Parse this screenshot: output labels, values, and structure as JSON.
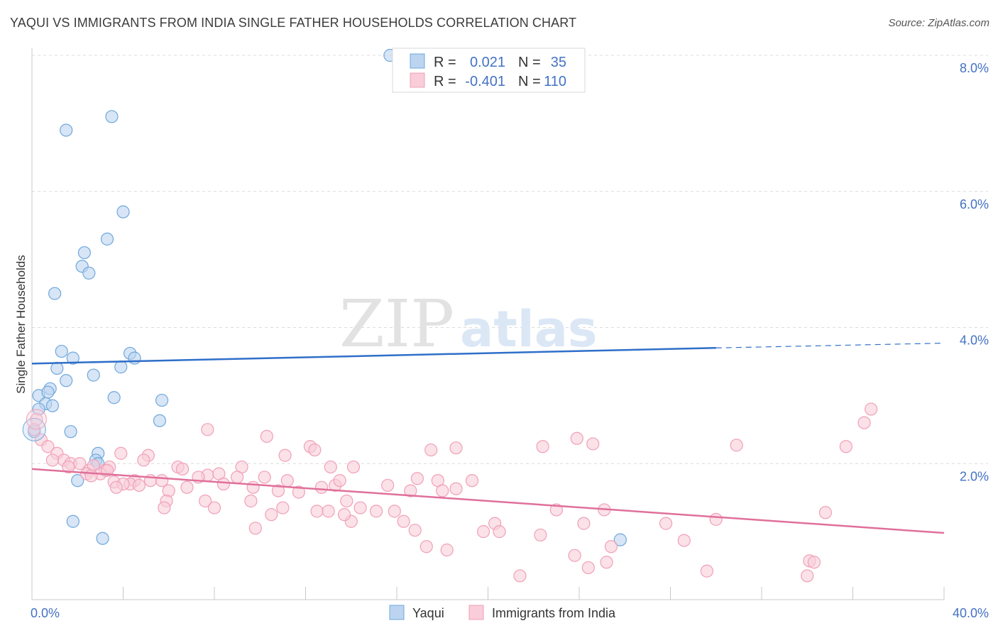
{
  "title": "YAQUI VS IMMIGRANTS FROM INDIA SINGLE FATHER HOUSEHOLDS CORRELATION CHART",
  "source": "Source: ZipAtlas.com",
  "watermark": {
    "zip": "ZIP",
    "atlas": "atlas"
  },
  "chart_data": {
    "type": "scatter",
    "ylabel": "Single Father Households",
    "xlim": [
      0,
      40
    ],
    "ylim": [
      0,
      8
    ],
    "y_ticks": [
      {
        "value": 2,
        "label": "2.0%"
      },
      {
        "value": 4,
        "label": "4.0%"
      },
      {
        "value": 6,
        "label": "6.0%"
      },
      {
        "value": 8,
        "label": "8.0%"
      }
    ],
    "x_tick_labels": [
      {
        "value": 0,
        "label": "0.0%"
      },
      {
        "value": 40,
        "label": "40.0%"
      }
    ],
    "x_minor_ticks": [
      0,
      4,
      8,
      12,
      16,
      20,
      24,
      28,
      32,
      36,
      40
    ],
    "grid": true,
    "legend": {
      "placement": "top-center",
      "rows": [
        {
          "r_label": "R =",
          "r_value": "0.021",
          "n_label": "N =",
          "n_value": "35"
        },
        {
          "r_label": "R =",
          "r_value": "-0.401",
          "n_label": "N =",
          "n_value": "110"
        }
      ]
    },
    "series": [
      {
        "name": "Yaqui",
        "color": "#6fa8dc",
        "fill": "#bcd4f0",
        "trend_color": "#2f6fc9",
        "trend": {
          "x0": 0,
          "y0": 3.47,
          "x1": 30,
          "y1": 3.7,
          "dash_x1": 40,
          "dash_y1": 3.77
        },
        "points": [
          [
            15.7,
            8.0
          ],
          [
            3.5,
            7.1
          ],
          [
            1.5,
            6.9
          ],
          [
            4.0,
            5.7
          ],
          [
            3.3,
            5.3
          ],
          [
            2.3,
            5.1
          ],
          [
            2.2,
            4.9
          ],
          [
            2.5,
            4.8
          ],
          [
            1.0,
            4.5
          ],
          [
            1.3,
            3.65
          ],
          [
            4.3,
            3.62
          ],
          [
            1.8,
            3.55
          ],
          [
            4.5,
            3.55
          ],
          [
            1.1,
            3.4
          ],
          [
            3.9,
            3.42
          ],
          [
            1.5,
            3.22
          ],
          [
            2.7,
            3.3
          ],
          [
            0.8,
            3.1
          ],
          [
            0.3,
            3.0
          ],
          [
            0.7,
            3.05
          ],
          [
            3.6,
            2.97
          ],
          [
            5.7,
            2.93
          ],
          [
            0.6,
            2.88
          ],
          [
            0.9,
            2.85
          ],
          [
            0.3,
            2.8
          ],
          [
            5.6,
            2.63
          ],
          [
            1.7,
            2.47
          ],
          [
            0.1,
            2.47
          ],
          [
            2.9,
            2.15
          ],
          [
            2.8,
            2.05
          ],
          [
            2.9,
            2.0
          ],
          [
            2.0,
            1.75
          ],
          [
            1.8,
            1.15
          ],
          [
            3.1,
            0.9
          ],
          [
            25.8,
            0.88
          ]
        ]
      },
      {
        "name": "Immigrants from India",
        "color": "#f0a0b8",
        "fill": "#f9cdd9",
        "trend_color": "#e0709a",
        "trend": {
          "x0": 0,
          "y0": 1.92,
          "x1": 40,
          "y1": 0.98
        },
        "points": [
          [
            0.2,
            2.65
          ],
          [
            0.1,
            2.5
          ],
          [
            0.4,
            2.35
          ],
          [
            0.7,
            2.25
          ],
          [
            1.1,
            2.15
          ],
          [
            1.4,
            2.05
          ],
          [
            0.9,
            2.05
          ],
          [
            1.7,
            2.0
          ],
          [
            2.1,
            2.0
          ],
          [
            1.6,
            1.95
          ],
          [
            2.5,
            1.9
          ],
          [
            2.7,
            1.97
          ],
          [
            3.2,
            1.9
          ],
          [
            3.4,
            1.95
          ],
          [
            2.4,
            1.85
          ],
          [
            3.0,
            1.85
          ],
          [
            3.3,
            1.9
          ],
          [
            2.6,
            1.82
          ],
          [
            3.9,
            2.15
          ],
          [
            5.1,
            2.12
          ],
          [
            4.9,
            2.05
          ],
          [
            6.4,
            1.95
          ],
          [
            6.6,
            1.92
          ],
          [
            7.7,
            1.83
          ],
          [
            8.2,
            1.85
          ],
          [
            9.2,
            1.95
          ],
          [
            7.3,
            1.8
          ],
          [
            9.0,
            1.8
          ],
          [
            3.6,
            1.73
          ],
          [
            4.5,
            1.75
          ],
          [
            4.3,
            1.7
          ],
          [
            5.2,
            1.75
          ],
          [
            5.7,
            1.75
          ],
          [
            4.0,
            1.7
          ],
          [
            3.7,
            1.65
          ],
          [
            4.7,
            1.68
          ],
          [
            6.0,
            1.6
          ],
          [
            6.8,
            1.65
          ],
          [
            8.4,
            1.7
          ],
          [
            9.7,
            1.65
          ],
          [
            7.6,
            1.45
          ],
          [
            8.0,
            1.35
          ],
          [
            5.9,
            1.45
          ],
          [
            5.8,
            1.35
          ],
          [
            10.2,
            1.8
          ],
          [
            10.8,
            1.6
          ],
          [
            11.2,
            1.75
          ],
          [
            11.7,
            1.58
          ],
          [
            12.7,
            1.65
          ],
          [
            13.3,
            1.68
          ],
          [
            13.5,
            1.75
          ],
          [
            14.1,
            1.95
          ],
          [
            15.6,
            1.68
          ],
          [
            16.6,
            1.6
          ],
          [
            16.9,
            1.78
          ],
          [
            17.8,
            1.75
          ],
          [
            18.0,
            1.6
          ],
          [
            18.6,
            1.63
          ],
          [
            19.3,
            1.75
          ],
          [
            18.6,
            2.23
          ],
          [
            17.5,
            2.2
          ],
          [
            12.2,
            2.25
          ],
          [
            11.1,
            2.12
          ],
          [
            12.4,
            2.2
          ],
          [
            10.3,
            2.4
          ],
          [
            7.7,
            2.5
          ],
          [
            13.1,
            1.95
          ],
          [
            9.6,
            1.45
          ],
          [
            11.0,
            1.35
          ],
          [
            10.5,
            1.25
          ],
          [
            12.5,
            1.3
          ],
          [
            13.0,
            1.3
          ],
          [
            13.8,
            1.45
          ],
          [
            14.4,
            1.35
          ],
          [
            15.1,
            1.3
          ],
          [
            15.9,
            1.3
          ],
          [
            16.3,
            1.15
          ],
          [
            14.0,
            1.15
          ],
          [
            16.8,
            1.02
          ],
          [
            9.8,
            1.05
          ],
          [
            13.7,
            1.25
          ],
          [
            17.3,
            0.78
          ],
          [
            18.2,
            0.73
          ],
          [
            19.8,
            1.0
          ],
          [
            20.3,
            1.12
          ],
          [
            20.5,
            1.0
          ],
          [
            21.4,
            0.35
          ],
          [
            22.3,
            0.95
          ],
          [
            23.0,
            1.32
          ],
          [
            22.4,
            2.25
          ],
          [
            23.9,
            2.37
          ],
          [
            24.6,
            2.29
          ],
          [
            24.2,
            1.12
          ],
          [
            25.1,
            1.32
          ],
          [
            23.8,
            0.65
          ],
          [
            24.4,
            0.47
          ],
          [
            25.2,
            0.55
          ],
          [
            25.4,
            0.78
          ],
          [
            27.8,
            1.12
          ],
          [
            28.6,
            0.87
          ],
          [
            29.6,
            0.42
          ],
          [
            30.0,
            1.18
          ],
          [
            30.9,
            2.27
          ],
          [
            34.1,
            0.57
          ],
          [
            34.3,
            0.55
          ],
          [
            34.8,
            1.28
          ],
          [
            34.0,
            0.35
          ],
          [
            35.7,
            2.25
          ],
          [
            36.5,
            2.6
          ],
          [
            36.8,
            2.8
          ]
        ]
      }
    ]
  }
}
